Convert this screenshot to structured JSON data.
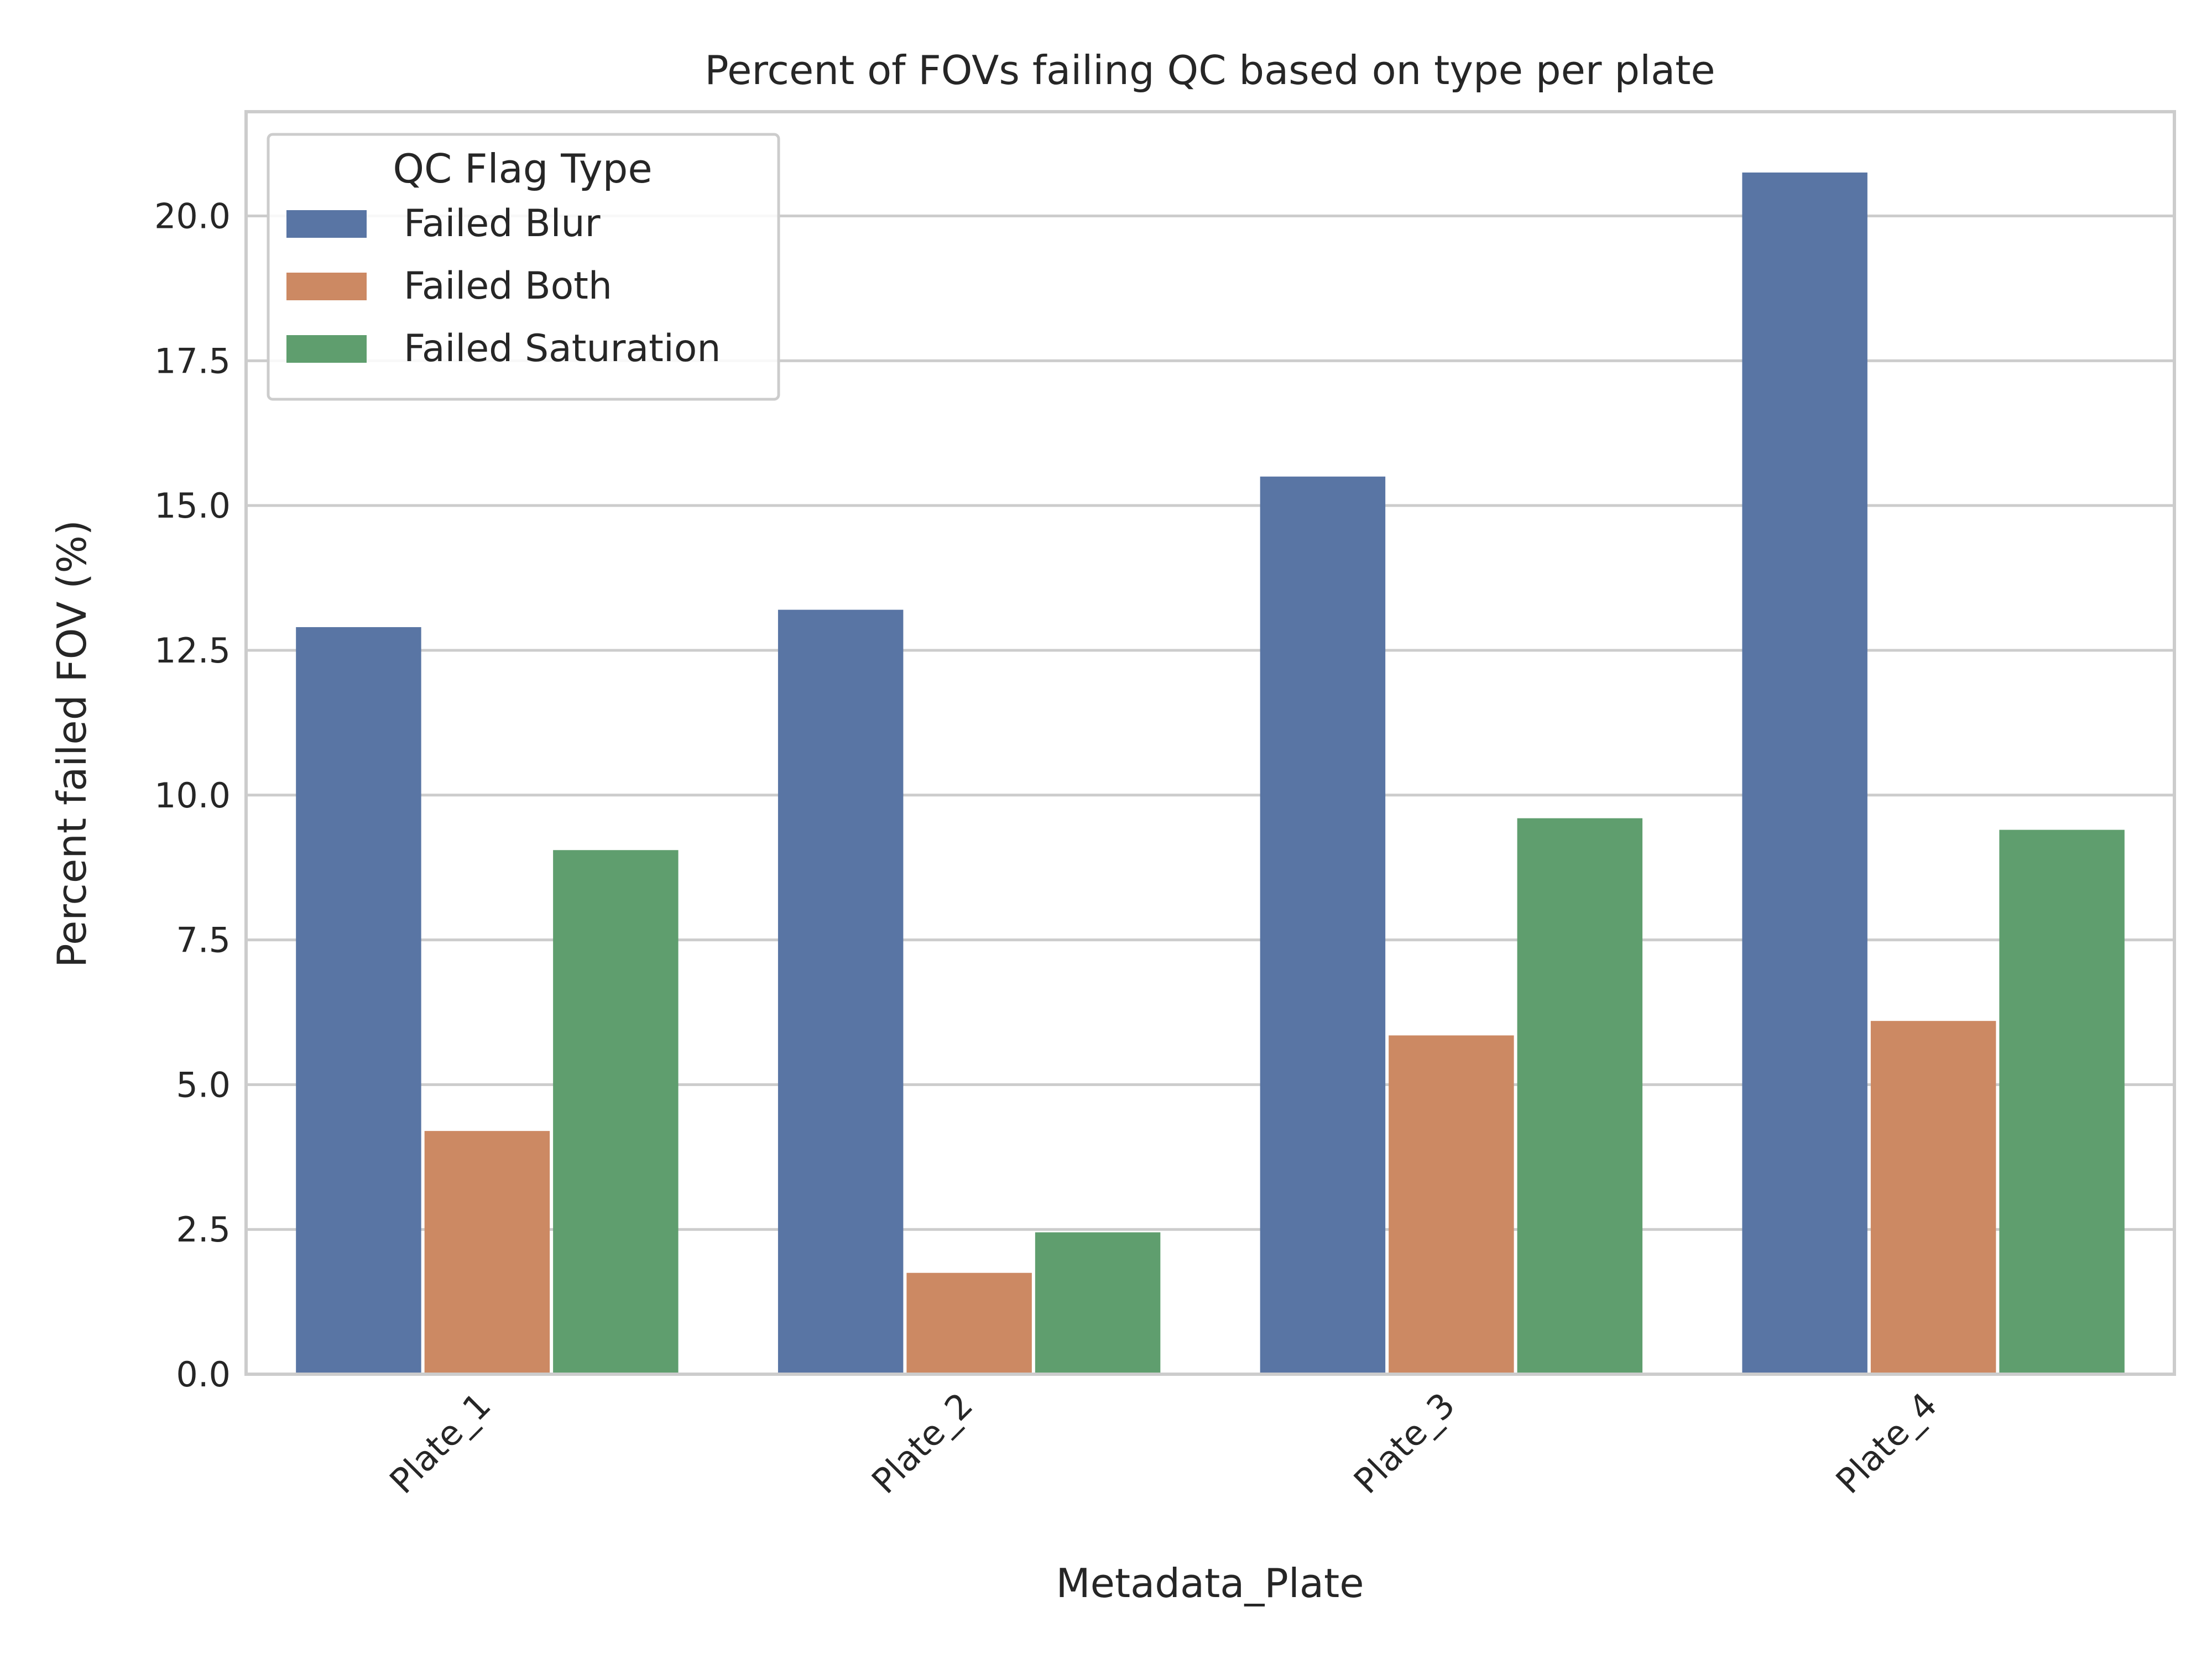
{
  "chart_data": {
    "type": "bar",
    "title": "Percent of FOVs failing QC based on type per plate",
    "xlabel": "Metadata_Plate",
    "ylabel": "Percent failed FOV (%)",
    "categories": [
      "Plate_1",
      "Plate_2",
      "Plate_3",
      "Plate_4"
    ],
    "series": [
      {
        "name": "Failed Blur",
        "color": "#5975a4",
        "values": [
          12.9,
          13.2,
          15.5,
          20.75
        ]
      },
      {
        "name": "Failed Both",
        "color": "#cc8963",
        "values": [
          4.2,
          1.75,
          5.85,
          6.1
        ]
      },
      {
        "name": "Failed Saturation",
        "color": "#5f9e6e",
        "values": [
          9.05,
          2.45,
          9.6,
          9.4
        ]
      }
    ],
    "ylim": [
      0,
      21.8
    ],
    "yticks": [
      "0.0",
      "2.5",
      "5.0",
      "7.5",
      "10.0",
      "12.5",
      "15.0",
      "17.5",
      "20.0"
    ],
    "grid": true,
    "legend": {
      "title": "QC Flag Type",
      "placement": "top-left"
    }
  }
}
